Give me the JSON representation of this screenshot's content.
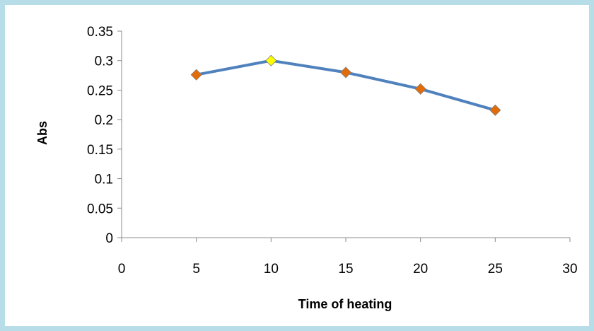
{
  "chart_data": {
    "type": "line",
    "title": "",
    "xlabel": "Time of heating",
    "ylabel": "Abs",
    "xlim": [
      0,
      30
    ],
    "ylim": [
      0,
      0.35
    ],
    "x_ticks": [
      "0",
      "5",
      "10",
      "15",
      "20",
      "25",
      "30"
    ],
    "y_ticks": [
      "0",
      "0.05",
      "0.1",
      "0.15",
      "0.2",
      "0.25",
      "0.3",
      "0.35"
    ],
    "grid": false,
    "legend": "none",
    "series": [
      {
        "x": [
          5,
          10,
          15,
          20,
          25
        ],
        "y": [
          0.276,
          0.3,
          0.28,
          0.252,
          0.216
        ],
        "line_color": "#4f81bd",
        "marker": "diamond",
        "marker_colors": [
          "#e36c0a",
          "#ffff00",
          "#e36c0a",
          "#e36c0a",
          "#e36c0a"
        ]
      }
    ]
  }
}
